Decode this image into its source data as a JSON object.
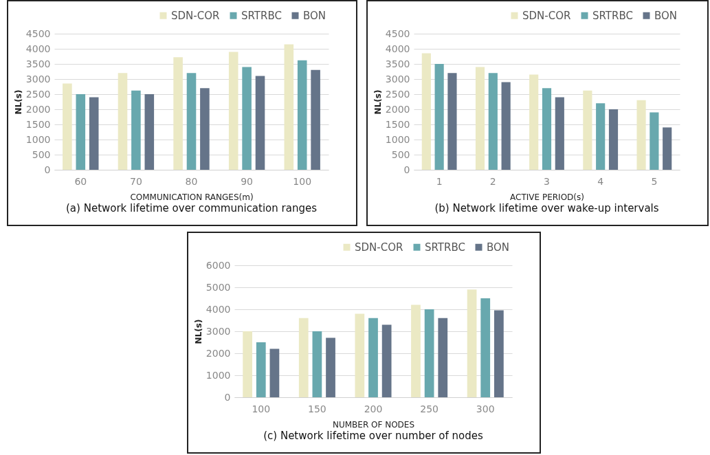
{
  "chart_data": [
    {
      "type": "bar",
      "title": "(a) Network lifetime over communication ranges",
      "xlabel": "COMMUNICATION RANGES(m)",
      "ylabel": "NL(s)",
      "categories": [
        "60",
        "70",
        "80",
        "90",
        "100"
      ],
      "series": [
        {
          "name": "SDN-COR",
          "color": "#ebe9c4",
          "values": [
            2850,
            3200,
            3720,
            3900,
            4150
          ]
        },
        {
          "name": "SRTRBC",
          "color": "#68a8ae",
          "values": [
            2500,
            2620,
            3200,
            3400,
            3620
          ]
        },
        {
          "name": "BON",
          "color": "#657489",
          "values": [
            2400,
            2500,
            2700,
            3100,
            3300
          ]
        }
      ],
      "ylim": [
        0,
        4500
      ],
      "yticks": [
        0,
        500,
        1000,
        1500,
        2000,
        2500,
        3000,
        3500,
        4000,
        4500
      ],
      "grid": "y",
      "legend": "top right"
    },
    {
      "type": "bar",
      "title": "(b) Network lifetime over wake-up intervals",
      "xlabel": "ACTIVE  PERIOD(s)",
      "ylabel": "NL(s)",
      "categories": [
        "1",
        "2",
        "3",
        "4",
        "5"
      ],
      "series": [
        {
          "name": "SDN-COR",
          "color": "#ebe9c4",
          "values": [
            3850,
            3400,
            3150,
            2620,
            2300
          ]
        },
        {
          "name": "SRTRBC",
          "color": "#68a8ae",
          "values": [
            3500,
            3200,
            2700,
            2200,
            1900
          ]
        },
        {
          "name": "BON",
          "color": "#657489",
          "values": [
            3200,
            2900,
            2400,
            2000,
            1400
          ]
        }
      ],
      "ylim": [
        0,
        4500
      ],
      "yticks": [
        0,
        500,
        1000,
        1500,
        2000,
        2500,
        3000,
        3500,
        4000,
        4500
      ],
      "grid": "y",
      "legend": "top right"
    },
    {
      "type": "bar",
      "title": "(c) Network lifetime over number of nodes",
      "xlabel": "NUMBER OF NODES",
      "ylabel": "NL(s)",
      "categories": [
        "100",
        "150",
        "200",
        "250",
        "300"
      ],
      "series": [
        {
          "name": "SDN-COR",
          "color": "#ebe9c4",
          "values": [
            3000,
            3600,
            3800,
            4200,
            4900
          ]
        },
        {
          "name": "SRTRBC",
          "color": "#68a8ae",
          "values": [
            2500,
            3000,
            3600,
            4000,
            4500
          ]
        },
        {
          "name": "BON",
          "color": "#657489",
          "values": [
            2200,
            2700,
            3300,
            3600,
            3950
          ]
        }
      ],
      "ylim": [
        0,
        6000
      ],
      "yticks": [
        0,
        1000,
        2000,
        3000,
        4000,
        5000,
        6000
      ],
      "grid": "y",
      "legend": "top right"
    }
  ]
}
